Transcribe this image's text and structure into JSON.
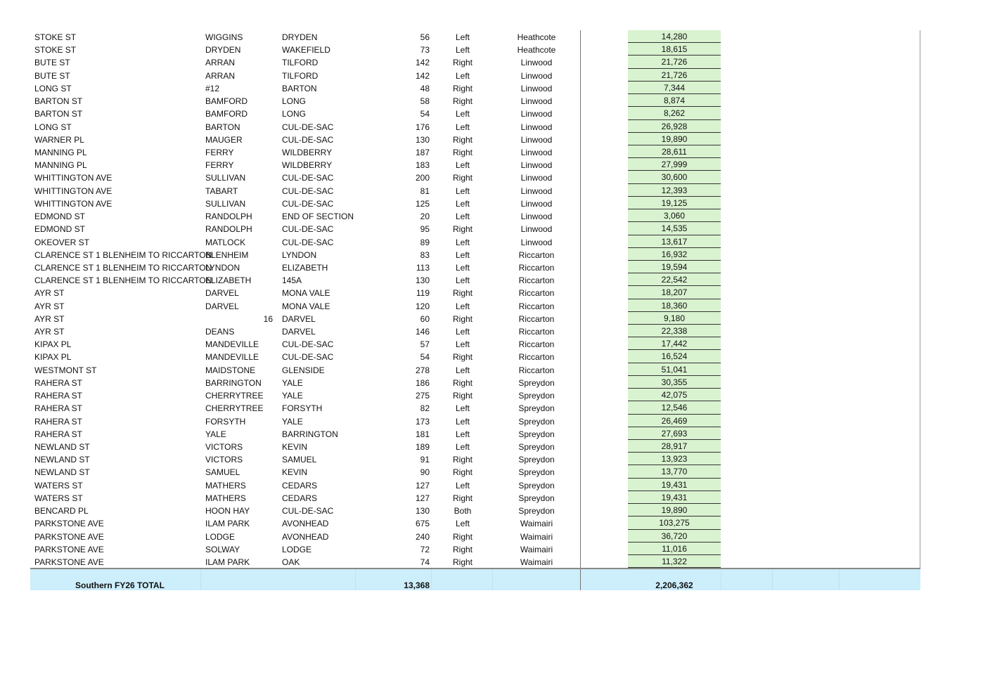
{
  "rows": [
    [
      "STOKE ST",
      "WIGGINS",
      "DRYDEN",
      "56",
      "Left",
      "Heathcote",
      "14,280"
    ],
    [
      "STOKE ST",
      "DRYDEN",
      "WAKEFIELD",
      "73",
      "Left",
      "Heathcote",
      "18,615"
    ],
    [
      "BUTE ST",
      "ARRAN",
      "TILFORD",
      "142",
      "Right",
      "Linwood",
      "21,726"
    ],
    [
      "BUTE ST",
      "ARRAN",
      "TILFORD",
      "142",
      "Left",
      "Linwood",
      "21,726"
    ],
    [
      "LONG ST",
      "#12",
      "BARTON",
      "48",
      "Right",
      "Linwood",
      "7,344"
    ],
    [
      "BARTON ST",
      "BAMFORD",
      "LONG",
      "58",
      "Right",
      "Linwood",
      "8,874"
    ],
    [
      "BARTON ST",
      "BAMFORD",
      "LONG",
      "54",
      "Left",
      "Linwood",
      "8,262"
    ],
    [
      "LONG ST",
      "BARTON",
      "CUL-DE-SAC",
      "176",
      "Left",
      "Linwood",
      "26,928"
    ],
    [
      "WARNER PL",
      "MAUGER",
      "CUL-DE-SAC",
      "130",
      "Right",
      "Linwood",
      "19,890"
    ],
    [
      "MANNING PL",
      "FERRY",
      "WILDBERRY",
      "187",
      "Right",
      "Linwood",
      "28,611"
    ],
    [
      "MANNING PL",
      "FERRY",
      "WILDBERRY",
      "183",
      "Left",
      "Linwood",
      "27,999"
    ],
    [
      "WHITTINGTON AVE",
      "SULLIVAN",
      "CUL-DE-SAC",
      "200",
      "Right",
      "Linwood",
      "30,600"
    ],
    [
      "WHITTINGTON AVE",
      "TABART",
      "CUL-DE-SAC",
      "81",
      "Left",
      "Linwood",
      "12,393"
    ],
    [
      "WHITTINGTON AVE",
      "SULLIVAN",
      "CUL-DE-SAC",
      "125",
      "Left",
      "Linwood",
      "19,125"
    ],
    [
      "EDMOND ST",
      "RANDOLPH",
      "END OF SECTION",
      "20",
      "Left",
      "Linwood",
      "3,060"
    ],
    [
      "EDMOND ST",
      "RANDOLPH",
      "CUL-DE-SAC",
      "95",
      "Right",
      "Linwood",
      "14,535"
    ],
    [
      "OKEOVER ST",
      "MATLOCK",
      "CUL-DE-SAC",
      "89",
      "Left",
      "Linwood",
      "13,617"
    ],
    [
      "CLARENCE ST 1 BLENHEIM TO RICCARTON",
      "BLENHEIM",
      "LYNDON",
      "83",
      "Left",
      "Riccarton",
      "16,932"
    ],
    [
      "CLARENCE ST 1 BLENHEIM TO RICCARTON",
      "LYNDON",
      "ELIZABETH",
      "113",
      "Left",
      "Riccarton",
      "19,594"
    ],
    [
      "CLARENCE ST 1 BLENHEIM TO RICCARTON",
      "ELIZABETH",
      "145A",
      "130",
      "Left",
      "Riccarton",
      "22,542"
    ],
    [
      "AYR ST",
      "DARVEL",
      "MONA VALE",
      "119",
      "Right",
      "Riccarton",
      "18,207"
    ],
    [
      "AYR ST",
      "DARVEL",
      "MONA VALE",
      "120",
      "Left",
      "Riccarton",
      "18,360"
    ],
    [
      "AYR ST",
      "16",
      "DARVEL",
      "60",
      "Right",
      "Riccarton",
      "9,180"
    ],
    [
      "AYR ST",
      "DEANS",
      "DARVEL",
      "146",
      "Left",
      "Riccarton",
      "22,338"
    ],
    [
      "KIPAX PL",
      "MANDEVILLE",
      "CUL-DE-SAC",
      "57",
      "Left",
      "Riccarton",
      "17,442"
    ],
    [
      "KIPAX PL",
      "MANDEVILLE",
      "CUL-DE-SAC",
      "54",
      "Right",
      "Riccarton",
      "16,524"
    ],
    [
      "WESTMONT ST",
      "MAIDSTONE",
      "GLENSIDE",
      "278",
      "Left",
      "Riccarton",
      "51,041"
    ],
    [
      "RAHERA ST",
      "BARRINGTON",
      "YALE",
      "186",
      "Right",
      "Spreydon",
      "30,355"
    ],
    [
      "RAHERA ST",
      "CHERRYTREE",
      "YALE",
      "275",
      "Right",
      "Spreydon",
      "42,075"
    ],
    [
      "RAHERA ST",
      "CHERRYTREE",
      "FORSYTH",
      "82",
      "Left",
      "Spreydon",
      "12,546"
    ],
    [
      "RAHERA ST",
      "FORSYTH",
      "YALE",
      "173",
      "Left",
      "Spreydon",
      "26,469"
    ],
    [
      "RAHERA ST",
      "YALE",
      "BARRINGTON",
      "181",
      "Left",
      "Spreydon",
      "27,693"
    ],
    [
      "NEWLAND ST",
      "VICTORS",
      "KEVIN",
      "189",
      "Left",
      "Spreydon",
      "28,917"
    ],
    [
      "NEWLAND ST",
      "VICTORS",
      "SAMUEL",
      "91",
      "Right",
      "Spreydon",
      "13,923"
    ],
    [
      "NEWLAND ST",
      "SAMUEL",
      "KEVIN",
      "90",
      "Right",
      "Spreydon",
      "13,770"
    ],
    [
      "WATERS ST",
      "MATHERS",
      "CEDARS",
      "127",
      "Left",
      "Spreydon",
      "19,431"
    ],
    [
      "WATERS ST",
      "MATHERS",
      "CEDARS",
      "127",
      "Right",
      "Spreydon",
      "19,431"
    ],
    [
      "BENCARD PL",
      "HOON HAY",
      "CUL-DE-SAC",
      "130",
      "Both",
      "Spreydon",
      "19,890"
    ],
    [
      "PARKSTONE AVE",
      "ILAM PARK",
      "AVONHEAD",
      "675",
      "Left",
      "Waimairi",
      "103,275"
    ],
    [
      "PARKSTONE AVE",
      "LODGE",
      "AVONHEAD",
      "240",
      "Right",
      "Waimairi",
      "36,720"
    ],
    [
      "PARKSTONE AVE",
      "SOLWAY",
      "LODGE",
      "72",
      "Right",
      "Waimairi",
      "11,016"
    ],
    [
      "PARKSTONE AVE",
      "ILAM PARK",
      "OAK",
      "74",
      "Right",
      "Waimairi",
      "11,322"
    ]
  ],
  "total": {
    "label": "Southern FY26 TOTAL",
    "length": "13,368",
    "cost": "2,206,362"
  },
  "colors": {
    "cost_fill": "#d9f2d0",
    "total_fill": "#cdeefb"
  }
}
